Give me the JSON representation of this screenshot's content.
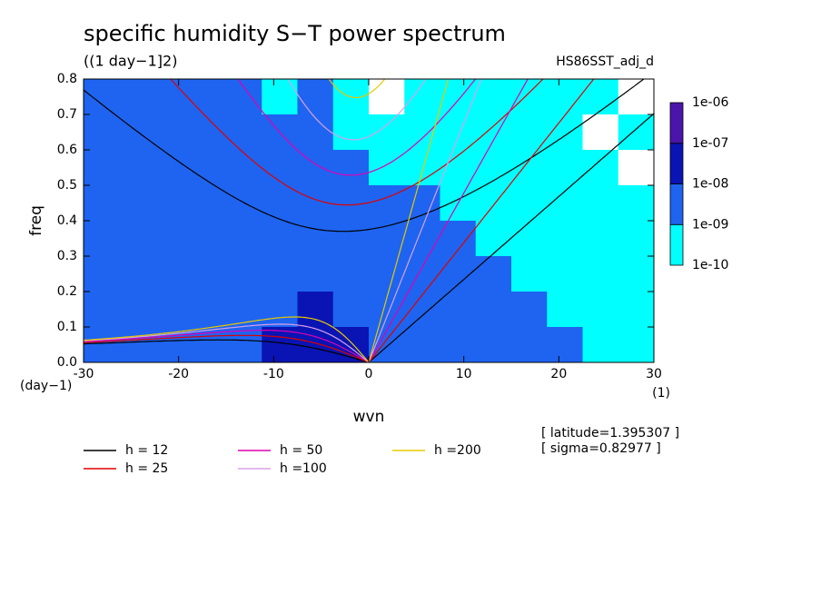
{
  "chart_data": {
    "type": "contour",
    "title": "specific humidity S−T power spectrum",
    "subtitle": "((1 day−1]2)",
    "run_name": "HS86SST_adj_d",
    "x_label": "wvn",
    "y_label": "freq",
    "y_unit": "(day−1)",
    "x_unit": "(1)",
    "annotations": [
      "[ latitude=1.395307 ]",
      "[ sigma=0.82977 ]"
    ],
    "xlim": [
      -30,
      30
    ],
    "ylim": [
      0,
      0.8
    ],
    "xticks": [
      -30,
      -20,
      -10,
      0,
      10,
      20,
      30
    ],
    "yticks": [
      {
        "value": 0,
        "label": "0.0"
      },
      0.1,
      0.2,
      0.3,
      0.4,
      0.5,
      0.6,
      0.7,
      0.8
    ],
    "levels": [
      {
        "value": 1e-10,
        "label": "1e-10"
      },
      {
        "value": 1e-09,
        "label": "1e-09"
      },
      {
        "value": 1e-08,
        "label": "1e-08"
      },
      {
        "value": 1e-07,
        "label": "1e-07"
      },
      {
        "value": 1e-06,
        "label": "1e-06"
      }
    ],
    "level_colors": [
      "#00ffff",
      "#1e64f0",
      "#0a14b4",
      "#4b14aa"
    ],
    "z": [
      [
        3e-09,
        3e-09,
        3e-09,
        3e-09,
        3e-09,
        4e-10,
        3e-09,
        4e-10,
        6e-11,
        4e-10,
        4e-10,
        4e-10,
        4e-10,
        4e-10,
        4e-10,
        6e-11
      ],
      [
        3e-09,
        3e-09,
        3e-09,
        3e-09,
        3e-09,
        3e-09,
        3e-09,
        4e-10,
        4e-10,
        4e-10,
        4e-10,
        4e-10,
        4e-10,
        4e-10,
        6e-11,
        4e-10
      ],
      [
        3e-09,
        3e-09,
        3e-09,
        3e-09,
        3e-09,
        3e-09,
        3e-09,
        3e-09,
        4e-10,
        4e-10,
        4e-10,
        4e-10,
        4e-10,
        4e-10,
        4e-10,
        6e-11
      ],
      [
        3e-09,
        3e-09,
        3e-09,
        3e-09,
        3e-09,
        3e-09,
        3e-09,
        3e-09,
        3e-09,
        3e-09,
        4e-10,
        4e-10,
        4e-10,
        4e-10,
        4e-10,
        4e-10
      ],
      [
        3e-09,
        3e-09,
        3e-09,
        3e-09,
        3e-09,
        3e-09,
        3e-09,
        3e-09,
        3e-09,
        3e-09,
        3e-09,
        4e-10,
        4e-10,
        4e-10,
        4e-10,
        4e-10
      ],
      [
        3e-09,
        3e-09,
        3e-09,
        3e-09,
        3e-09,
        3e-09,
        3e-09,
        3e-09,
        3e-09,
        3e-09,
        3e-09,
        3e-09,
        4e-10,
        4e-10,
        4e-10,
        4e-10
      ],
      [
        3e-09,
        3e-09,
        3e-09,
        3e-09,
        3e-09,
        3e-09,
        2e-08,
        3e-09,
        3e-09,
        3e-09,
        3e-09,
        3e-09,
        3e-09,
        4e-10,
        4e-10,
        4e-10
      ],
      [
        3e-09,
        3e-09,
        3e-09,
        3e-09,
        3e-09,
        2e-08,
        2e-08,
        2e-08,
        3e-09,
        3e-09,
        3e-09,
        3e-09,
        3e-09,
        3e-09,
        4e-10,
        4e-10
      ]
    ],
    "series": [
      {
        "name": "h = 12",
        "h": 12,
        "color": "#000000"
      },
      {
        "name": "h = 25",
        "h": 25,
        "color": "#e00000"
      },
      {
        "name": "h = 50",
        "h": 50,
        "color": "#e000b4"
      },
      {
        "name": "h =100",
        "h": 100,
        "color": "#d8a0e8"
      },
      {
        "name": "h =200",
        "h": 200,
        "color": "#e8c800"
      }
    ]
  }
}
